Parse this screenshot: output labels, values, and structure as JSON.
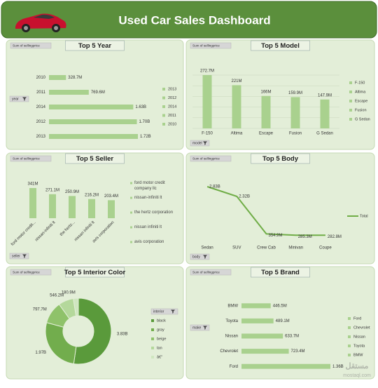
{
  "title": "Used Car Sales Dashboard",
  "watermark": [
    "مستقل",
    "mostaql.com"
  ],
  "chart_data": [
    {
      "type": "bar",
      "orientation": "horizontal",
      "title": "Top 5 Year",
      "field_label": "Sum of sellingprice",
      "filter_label": "year",
      "categories": [
        "2010",
        "2011",
        "2014",
        "2012",
        "2013"
      ],
      "values": [
        328700000,
        769600000,
        1630000000,
        1700000000,
        1720000000
      ],
      "value_labels": [
        "328.7M",
        "769.6M",
        "1.63B",
        "1.70B",
        "1.72B"
      ],
      "color": "#a9d18e",
      "legend": [
        "2013",
        "2012",
        "2014",
        "2011",
        "2010"
      ]
    },
    {
      "type": "bar",
      "orientation": "vertical",
      "title": "Top 5 Model",
      "field_label": "Sum of sellingprice",
      "filter_label": "model",
      "categories": [
        "F-150",
        "Altima",
        "Escape",
        "Fusion",
        "G Sedan"
      ],
      "values": [
        272700000,
        221000000,
        166000000,
        159900000,
        147900000
      ],
      "value_labels": [
        "272.7M",
        "221M",
        "166M",
        "159.9M",
        "147.9M"
      ],
      "color": "#a9d18e",
      "grid": true,
      "legend": [
        "F-150",
        "Altima",
        "Escape",
        "Fusion",
        "G Sedan"
      ]
    },
    {
      "type": "bar",
      "orientation": "vertical",
      "title": "Top 5 Seller",
      "field_label": "Sum of sellingprice",
      "filter_label": "seller",
      "categories": [
        "ford motor credit...",
        "nissan-infiniti lt",
        "the hertz...",
        "nissan infiniti lt",
        "avis corporation"
      ],
      "values": [
        341000000,
        271100000,
        250900000,
        216200000,
        203400000
      ],
      "value_labels": [
        "341M",
        "271.1M",
        "250.9M",
        "216.2M",
        "203.4M"
      ],
      "color": "#a9d18e",
      "rotate_labels": true,
      "legend": [
        "ford motor credit company llc",
        "nissan-infiniti lt",
        "the hertz corporation",
        "nissan infiniti lt",
        "avis corporation"
      ]
    },
    {
      "type": "line",
      "title": "Top 5 Body",
      "field_label": "Sum of sellingprice",
      "filter_label": "body",
      "categories": [
        "Sedan",
        "SUV",
        "Crew Cab",
        "Minivan",
        "Coupe"
      ],
      "values": [
        2830000000,
        2320000000,
        354900000,
        285300000,
        282800000
      ],
      "value_labels": [
        "2.83B",
        "2.32B",
        "354.9M",
        "285.3M",
        "282.8M"
      ],
      "color": "#70ad47",
      "legend": [
        "Total"
      ]
    },
    {
      "type": "pie",
      "donut": true,
      "title": "Top 5 Interior Color",
      "field_label": "Sum of sellingprice",
      "legend_title": "interior",
      "categories": [
        "black",
        "gray",
        "beige",
        "tan",
        "â€\""
      ],
      "values": [
        3830000000,
        1970000000,
        797700000,
        546200000,
        180900000
      ],
      "value_labels": [
        "3.83B",
        "1.97B",
        "797.7M",
        "546.2M",
        "180.9M"
      ],
      "colors": [
        "#5a9a3b",
        "#72ad4d",
        "#8fc26a",
        "#b4d89b",
        "#cfe6c0"
      ],
      "legend": [
        "black",
        "gray",
        "beige",
        "tan",
        "â€\""
      ]
    },
    {
      "type": "bar",
      "orientation": "horizontal",
      "title": "Top 5 Brand",
      "field_label": "Sum of sellingprice",
      "filter_label": "make",
      "categories": [
        "BMW",
        "Toyota",
        "Nissan",
        "Chevrolet",
        "Ford"
      ],
      "values": [
        446500000,
        489100000,
        633700000,
        723400000,
        1360000000
      ],
      "value_labels": [
        "446.5M",
        "489.1M",
        "633.7M",
        "723.4M",
        "1.36B"
      ],
      "color": "#a9d18e",
      "legend": [
        "Ford",
        "Chevrolet",
        "Nissan",
        "Toyota",
        "BMW"
      ]
    }
  ]
}
